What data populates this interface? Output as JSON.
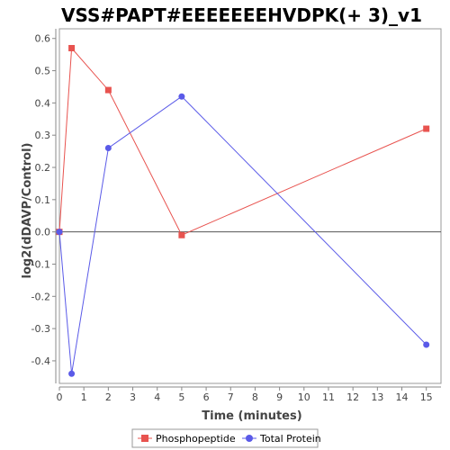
{
  "chart_data": {
    "type": "line",
    "title": "VSS#PAPT#EEEEEEEHVDPK(+ 3)_v1",
    "xlabel": "Time (minutes)",
    "ylabel": "log2(dDAVP/Control)",
    "xlim": [
      0,
      15.6
    ],
    "ylim": [
      -0.47,
      0.63
    ],
    "xticks": [
      0,
      1,
      2,
      3,
      4,
      5,
      6,
      7,
      8,
      9,
      10,
      11,
      12,
      13,
      14,
      15
    ],
    "yticks": [
      -0.4,
      -0.3,
      -0.2,
      -0.1,
      0.0,
      0.1,
      0.2,
      0.3,
      0.4,
      0.5,
      0.6
    ],
    "ytick_labels": [
      "-0.4",
      "-0.3",
      "-0.2",
      "-0.1",
      "0.0",
      "0.1",
      "0.2",
      "0.3",
      "0.4",
      "0.5",
      "0.6"
    ],
    "series": [
      {
        "name": "Phosphopeptide",
        "color": "#e8534f",
        "marker": "square",
        "x": [
          0,
          0.5,
          2,
          5,
          15
        ],
        "y": [
          0.0,
          0.57,
          0.44,
          -0.01,
          0.32
        ]
      },
      {
        "name": "Total Protein",
        "color": "#5a5ae8",
        "marker": "circle",
        "x": [
          0,
          0.5,
          2,
          5,
          15
        ],
        "y": [
          0.0,
          -0.44,
          0.26,
          0.42,
          -0.35
        ]
      }
    ],
    "zero_line": true,
    "grid": false,
    "legend_position": "bottom"
  }
}
